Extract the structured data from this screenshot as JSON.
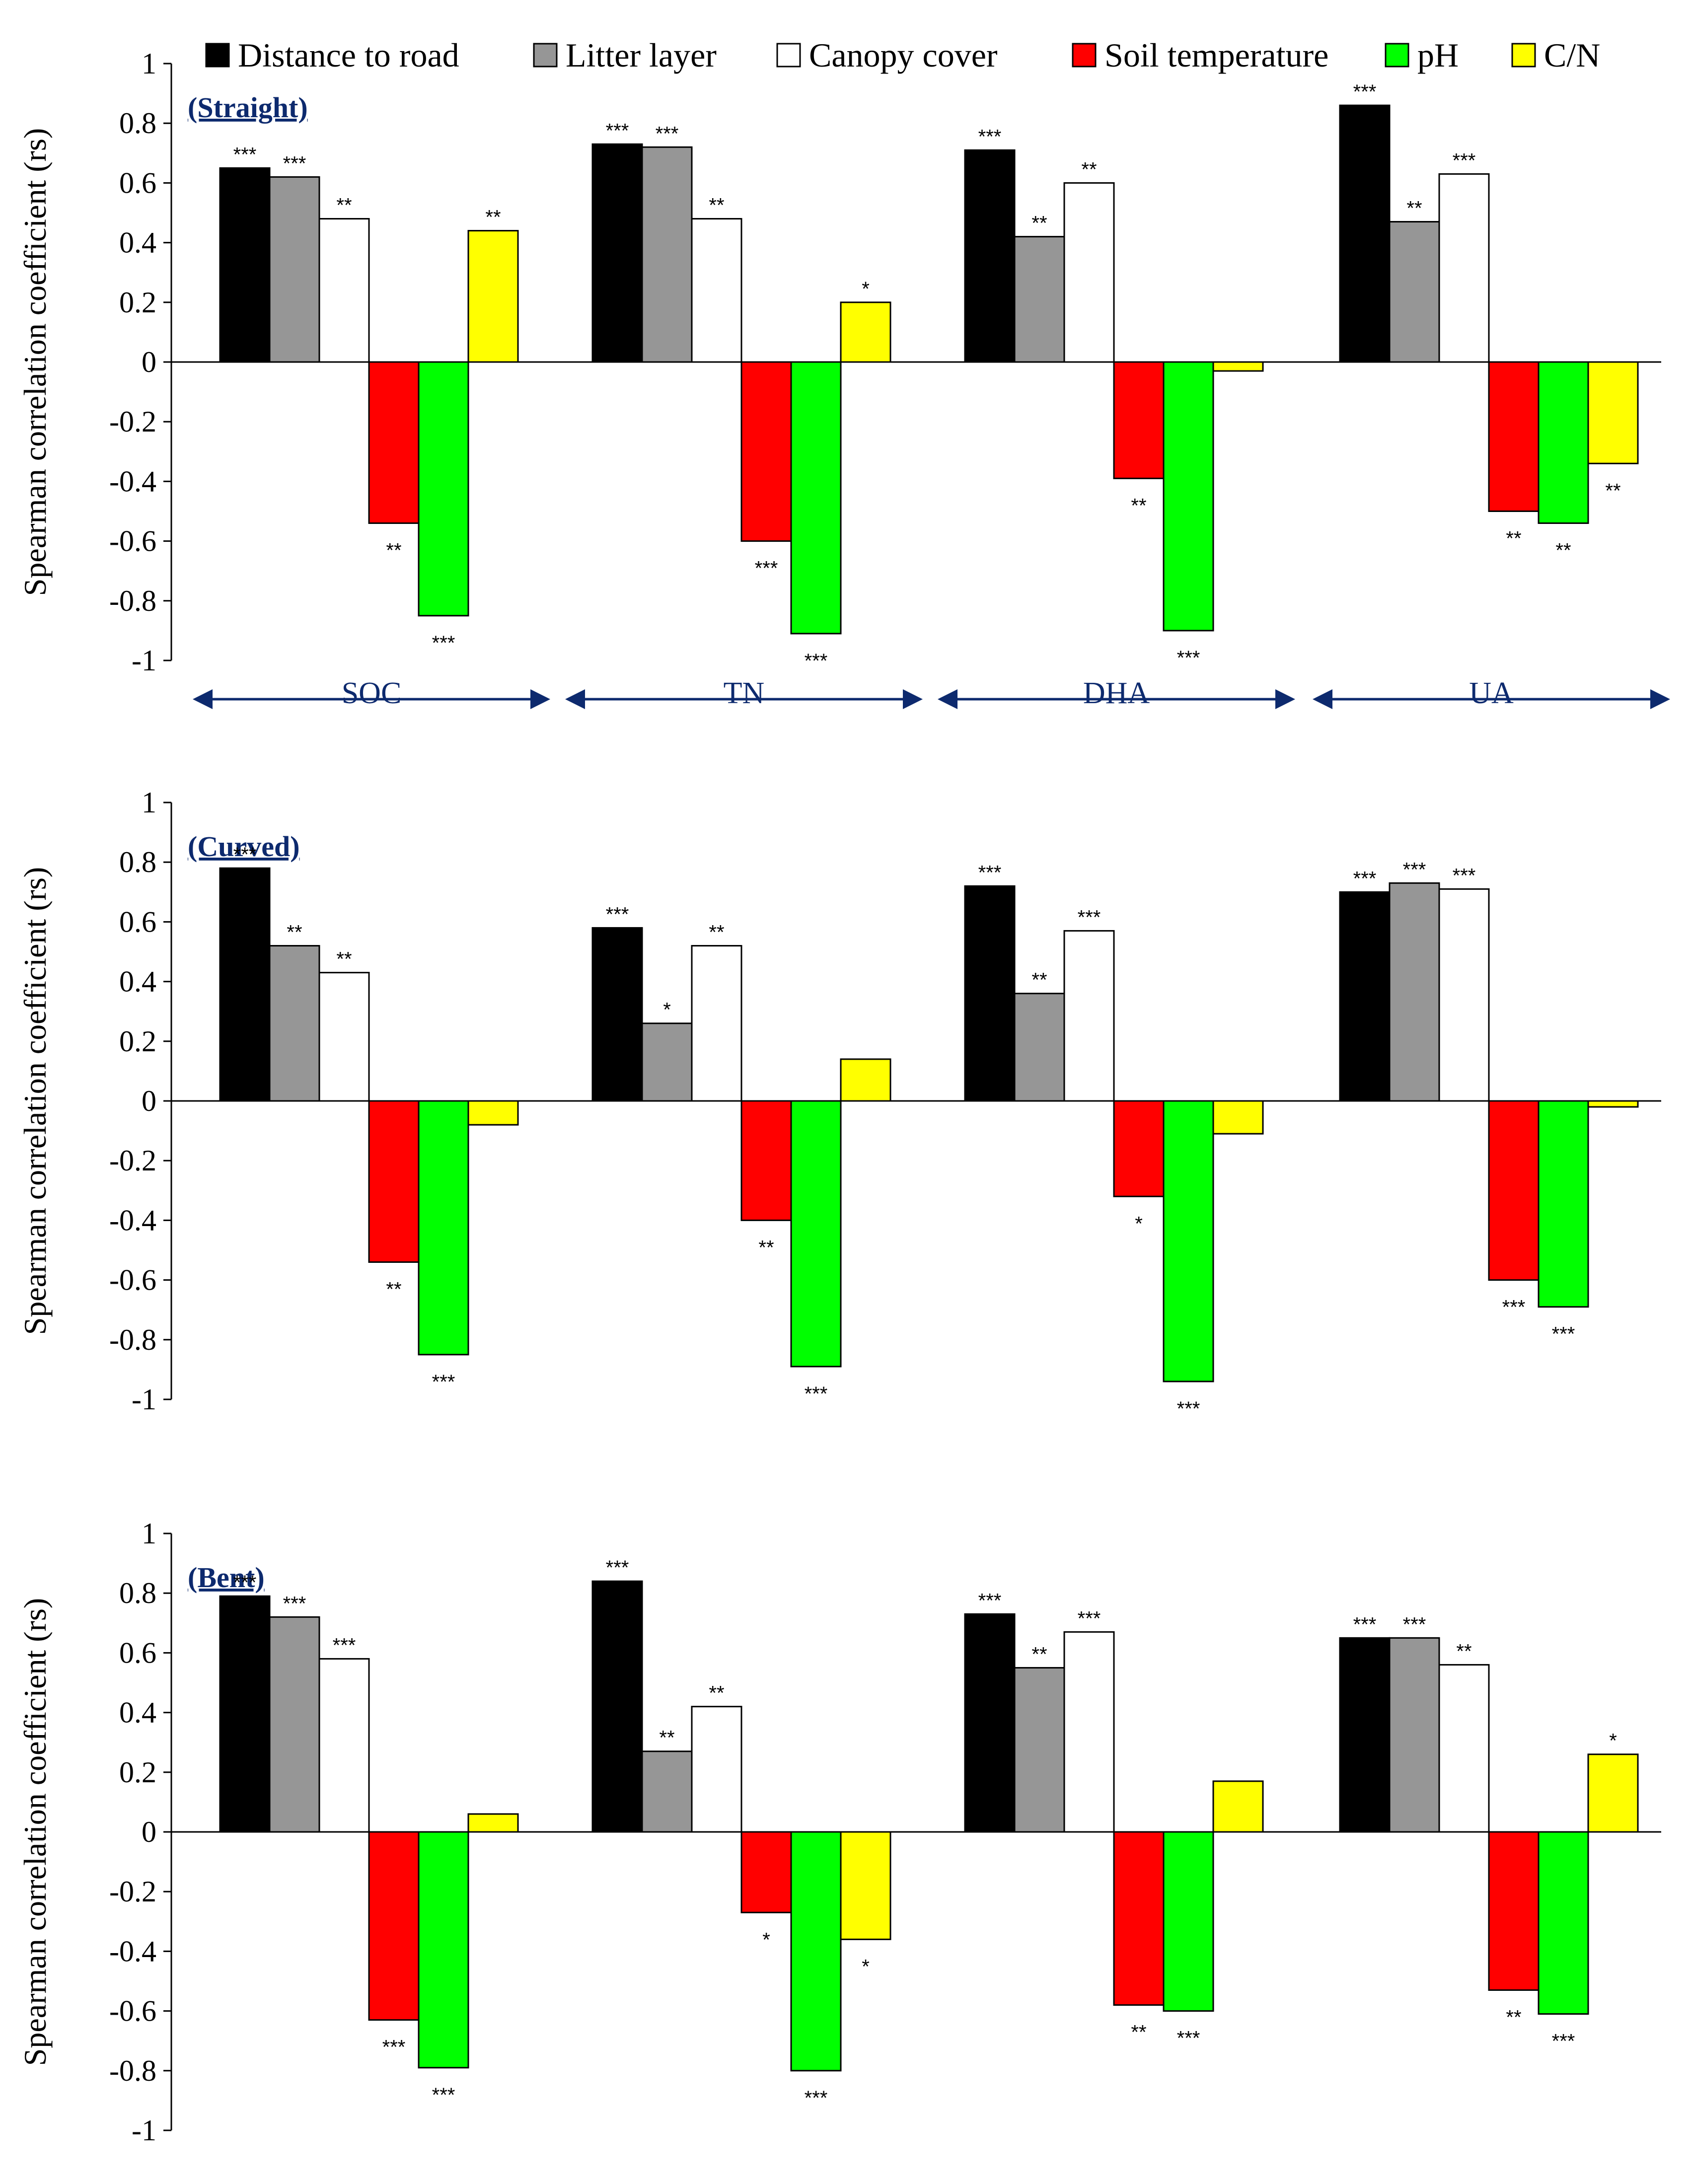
{
  "chart_data": {
    "type": "bar",
    "ylabel": "Spearman correlation coefficient (rs)",
    "ylim": [
      -1,
      1
    ],
    "yticks": [
      "1",
      "0.8",
      "0.6",
      "0.4",
      "0.2",
      "0",
      "-0.2",
      "-0.4",
      "-0.6",
      "-0.8",
      "-1"
    ],
    "groups": [
      "SOC",
      "TN",
      "DHA",
      "UA"
    ],
    "legend": [
      {
        "name": "Distance to road",
        "color": "#000000"
      },
      {
        "name": "Litter layer",
        "color": "#969696"
      },
      {
        "name": "Canopy cover",
        "color": "#ffffff"
      },
      {
        "name": "Soil temperature",
        "color": "#ff0000"
      },
      {
        "name": "pH",
        "color": "#00ff00"
      },
      {
        "name": "C/N",
        "color": "#ffff00"
      }
    ],
    "panels": [
      {
        "title": "(Straight)",
        "show_group_labels": true,
        "values": [
          [
            0.65,
            0.62,
            0.48,
            -0.54,
            -0.85,
            0.44
          ],
          [
            0.73,
            0.72,
            0.48,
            -0.6,
            -0.91,
            0.2
          ],
          [
            0.71,
            0.42,
            0.6,
            -0.39,
            -0.9,
            -0.03
          ],
          [
            0.86,
            0.47,
            0.63,
            -0.5,
            -0.54,
            -0.34
          ]
        ],
        "sig": [
          [
            "***",
            "***",
            "**",
            "**",
            "***",
            "**"
          ],
          [
            "***",
            "***",
            "**",
            "***",
            "***",
            "*"
          ],
          [
            "***",
            "**",
            "**",
            "**",
            "***",
            ""
          ],
          [
            "***",
            "**",
            "***",
            "**",
            "**",
            "**"
          ]
        ]
      },
      {
        "title": "(Curved)",
        "show_group_labels": false,
        "values": [
          [
            0.78,
            0.52,
            0.43,
            -0.54,
            -0.85,
            -0.08
          ],
          [
            0.58,
            0.26,
            0.52,
            -0.4,
            -0.89,
            0.14
          ],
          [
            0.72,
            0.36,
            0.57,
            -0.32,
            -0.94,
            -0.11
          ],
          [
            0.7,
            0.73,
            0.71,
            -0.6,
            -0.69,
            -0.02
          ]
        ],
        "sig": [
          [
            "***",
            "**",
            "**",
            "**",
            "***",
            ""
          ],
          [
            "***",
            "*",
            "**",
            "**",
            "***",
            ""
          ],
          [
            "***",
            "**",
            "***",
            "*",
            "***",
            ""
          ],
          [
            "***",
            "***",
            "***",
            "***",
            "***",
            ""
          ]
        ]
      },
      {
        "title": "(Bent)",
        "show_group_labels": false,
        "values": [
          [
            0.79,
            0.72,
            0.58,
            -0.63,
            -0.79,
            0.06
          ],
          [
            0.84,
            0.27,
            0.42,
            -0.27,
            -0.8,
            -0.36
          ],
          [
            0.73,
            0.55,
            0.67,
            -0.58,
            -0.6,
            0.17
          ],
          [
            0.65,
            0.65,
            0.56,
            -0.53,
            -0.61,
            0.26
          ]
        ],
        "sig": [
          [
            "***",
            "***",
            "***",
            "***",
            "***",
            ""
          ],
          [
            "***",
            "**",
            "**",
            "*",
            "***",
            "*"
          ],
          [
            "***",
            "**",
            "***",
            "**",
            "***",
            ""
          ],
          [
            "***",
            "***",
            "**",
            "**",
            "***",
            "*"
          ]
        ]
      }
    ]
  }
}
